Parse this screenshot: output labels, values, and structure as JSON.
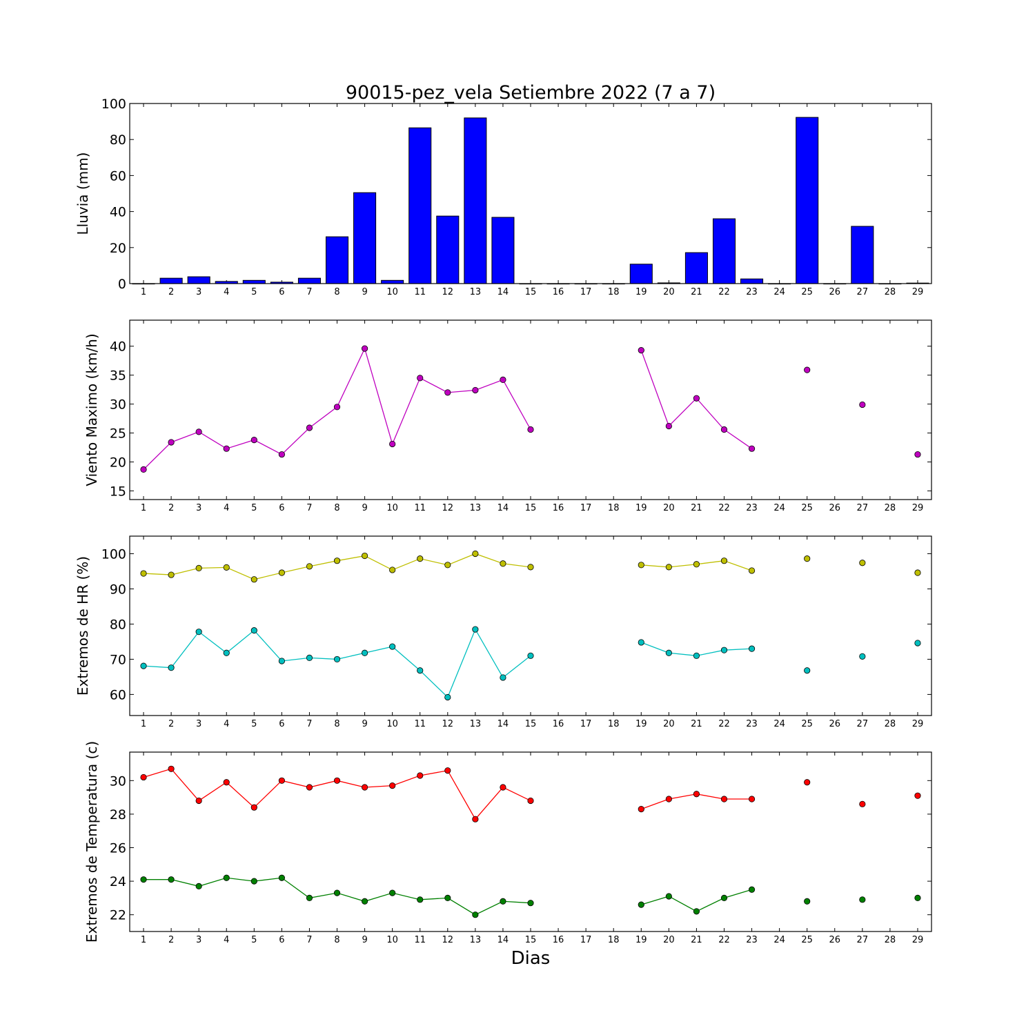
{
  "figure": {
    "title": "90015-pez_vela Setiembre 2022  (7 a 7)",
    "xlabel": "Dias"
  },
  "chart_data": [
    {
      "type": "bar",
      "id": "lluvia",
      "title": "90015-pez_vela Setiembre 2022  (7 a 7)",
      "xlabel": "",
      "ylabel": "Lluvia (mm)",
      "x": [
        1,
        2,
        3,
        4,
        5,
        6,
        7,
        8,
        9,
        10,
        11,
        12,
        13,
        14,
        15,
        16,
        17,
        18,
        19,
        20,
        21,
        22,
        23,
        24,
        25,
        26,
        27,
        28,
        29
      ],
      "xlim": [
        0.5,
        29.5
      ],
      "ylim": [
        0,
        100
      ],
      "yticks": [
        0,
        20,
        40,
        60,
        80,
        100
      ],
      "color": "#0000ff",
      "series": [
        {
          "values": [
            0,
            3,
            3.8,
            1.2,
            1.8,
            0.8,
            3,
            26,
            50.5,
            1.8,
            86.5,
            37.5,
            92,
            36.8,
            0,
            0,
            0,
            0,
            10.8,
            0.4,
            17.2,
            36,
            2.6,
            0,
            92.3,
            0,
            31.8,
            0,
            0.3
          ]
        }
      ]
    },
    {
      "type": "line",
      "id": "viento",
      "ylabel": "Viento Maximo (km/h)",
      "x": [
        1,
        2,
        3,
        4,
        5,
        6,
        7,
        8,
        9,
        10,
        11,
        12,
        13,
        14,
        15,
        16,
        17,
        18,
        19,
        20,
        21,
        22,
        23,
        24,
        25,
        26,
        27,
        28,
        29
      ],
      "xlim": [
        0.5,
        29.5
      ],
      "ylim": [
        13.5,
        44.5
      ],
      "yticks": [
        15,
        20,
        25,
        30,
        35,
        40
      ],
      "series": [
        {
          "color": "#bf00bf",
          "values": [
            18.7,
            23.4,
            25.2,
            22.3,
            23.8,
            21.3,
            25.9,
            29.5,
            39.6,
            23.1,
            34.5,
            32.0,
            32.4,
            34.2,
            25.6,
            null,
            null,
            null,
            39.3,
            26.2,
            31.0,
            25.6,
            22.3,
            null,
            35.9,
            null,
            29.9,
            null,
            21.3
          ]
        }
      ]
    },
    {
      "type": "line",
      "id": "humedad",
      "ylabel": "Extremos de HR (%)",
      "x": [
        1,
        2,
        3,
        4,
        5,
        6,
        7,
        8,
        9,
        10,
        11,
        12,
        13,
        14,
        15,
        16,
        17,
        18,
        19,
        20,
        21,
        22,
        23,
        24,
        25,
        26,
        27,
        28,
        29
      ],
      "xlim": [
        0.5,
        29.5
      ],
      "ylim": [
        54,
        105
      ],
      "yticks": [
        60,
        70,
        80,
        90,
        100
      ],
      "series": [
        {
          "color": "#bfbf00",
          "values": [
            94.4,
            94.0,
            95.9,
            96.1,
            92.7,
            94.6,
            96.4,
            98.0,
            99.4,
            95.4,
            98.6,
            96.8,
            100.0,
            97.2,
            96.2,
            null,
            null,
            null,
            96.8,
            96.2,
            97.0,
            98.0,
            95.2,
            null,
            98.6,
            null,
            97.4,
            null,
            94.6
          ]
        },
        {
          "color": "#00bfbf",
          "values": [
            68.1,
            67.6,
            77.8,
            71.8,
            78.2,
            69.5,
            70.4,
            70.0,
            71.8,
            73.6,
            66.8,
            59.2,
            78.5,
            64.8,
            71.0,
            null,
            null,
            null,
            74.8,
            71.8,
            71.0,
            72.6,
            73.0,
            null,
            66.8,
            null,
            70.8,
            null,
            74.6
          ]
        }
      ]
    },
    {
      "type": "line",
      "id": "temperatura",
      "ylabel": "Extremos de Temperatura (c)",
      "xlabel": "Dias",
      "x": [
        1,
        2,
        3,
        4,
        5,
        6,
        7,
        8,
        9,
        10,
        11,
        12,
        13,
        14,
        15,
        16,
        17,
        18,
        19,
        20,
        21,
        22,
        23,
        24,
        25,
        26,
        27,
        28,
        29
      ],
      "xlim": [
        0.5,
        29.5
      ],
      "ylim": [
        21.0,
        31.7
      ],
      "yticks": [
        22,
        24,
        26,
        28,
        30
      ],
      "series": [
        {
          "color": "#ff0000",
          "values": [
            30.2,
            30.7,
            28.8,
            29.9,
            28.4,
            30.0,
            29.6,
            30.0,
            29.6,
            29.7,
            30.3,
            30.6,
            27.7,
            29.6,
            28.8,
            null,
            null,
            null,
            28.3,
            28.9,
            29.2,
            28.9,
            28.9,
            null,
            29.9,
            null,
            28.6,
            null,
            29.1
          ]
        },
        {
          "color": "#008000",
          "values": [
            24.1,
            24.1,
            23.7,
            24.2,
            24.0,
            24.2,
            23.0,
            23.3,
            22.8,
            23.3,
            22.9,
            23.0,
            22.0,
            22.8,
            22.7,
            null,
            null,
            null,
            22.6,
            23.1,
            22.2,
            23.0,
            23.5,
            null,
            22.8,
            null,
            22.9,
            null,
            23.0
          ]
        }
      ]
    }
  ]
}
